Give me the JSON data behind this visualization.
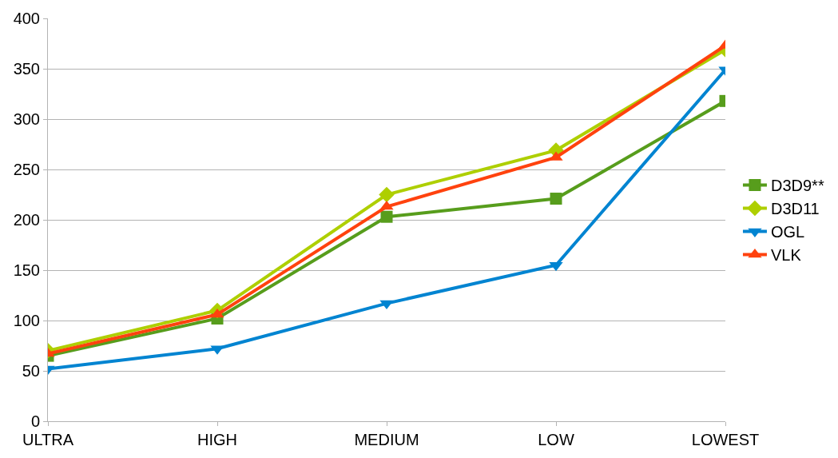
{
  "chart_data": {
    "type": "line",
    "categories": [
      "ULTRA",
      "HIGH",
      "MEDIUM",
      "LOW",
      "LOWEST"
    ],
    "ylim": [
      0,
      400
    ],
    "yticks": [
      0,
      50,
      100,
      150,
      200,
      250,
      300,
      350,
      400
    ],
    "grid": "y",
    "legend": "right",
    "series": [
      {
        "name": "D3D9**",
        "color": "#579d1c",
        "marker": "square",
        "values": [
          65,
          102,
          203,
          221,
          318
        ]
      },
      {
        "name": "D3D11",
        "color": "#aecf00",
        "marker": "diamond",
        "values": [
          70,
          110,
          225,
          269,
          369
        ]
      },
      {
        "name": "OGL",
        "color": "#0084d1",
        "marker": "triangle-down",
        "values": [
          52,
          72,
          117,
          155,
          349
        ]
      },
      {
        "name": "VLK",
        "color": "#ff420e",
        "marker": "triangle-up",
        "values": [
          67,
          106,
          213,
          262,
          373
        ]
      }
    ]
  }
}
